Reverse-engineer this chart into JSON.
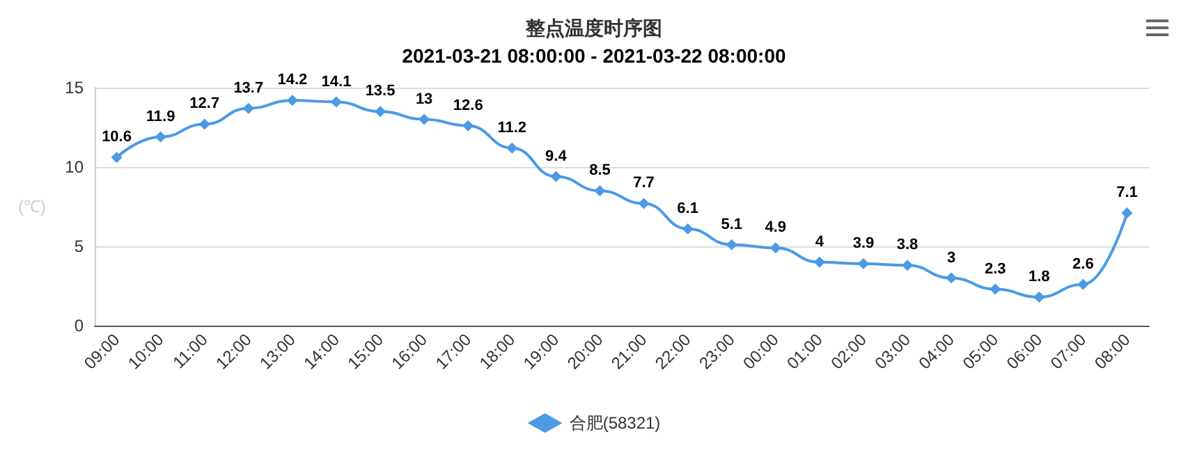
{
  "chart_data": {
    "type": "line",
    "title": "整点温度时序图",
    "subtitle": "2021-03-21 08:00:00 - 2021-03-22 08:00:00",
    "ylabel": "(℃)",
    "categories": [
      "09:00",
      "10:00",
      "11:00",
      "12:00",
      "13:00",
      "14:00",
      "15:00",
      "16:00",
      "17:00",
      "18:00",
      "19:00",
      "20:00",
      "21:00",
      "22:00",
      "23:00",
      "00:00",
      "01:00",
      "02:00",
      "03:00",
      "04:00",
      "05:00",
      "06:00",
      "07:00",
      "08:00"
    ],
    "series": [
      {
        "name": "合肥(58321)",
        "color": "#4a9ae6",
        "values": [
          10.6,
          11.9,
          12.7,
          13.7,
          14.2,
          14.1,
          13.5,
          13,
          12.6,
          11.2,
          9.4,
          8.5,
          7.7,
          6.1,
          5.1,
          4.9,
          4,
          3.9,
          3.8,
          3,
          2.3,
          1.8,
          2.6,
          7.1
        ]
      }
    ],
    "ylim": [
      0,
      15
    ],
    "yticks": [
      0,
      5,
      10,
      15
    ],
    "grid": "y",
    "legend": "bottom",
    "marker": "diamond",
    "data_labels": true
  }
}
